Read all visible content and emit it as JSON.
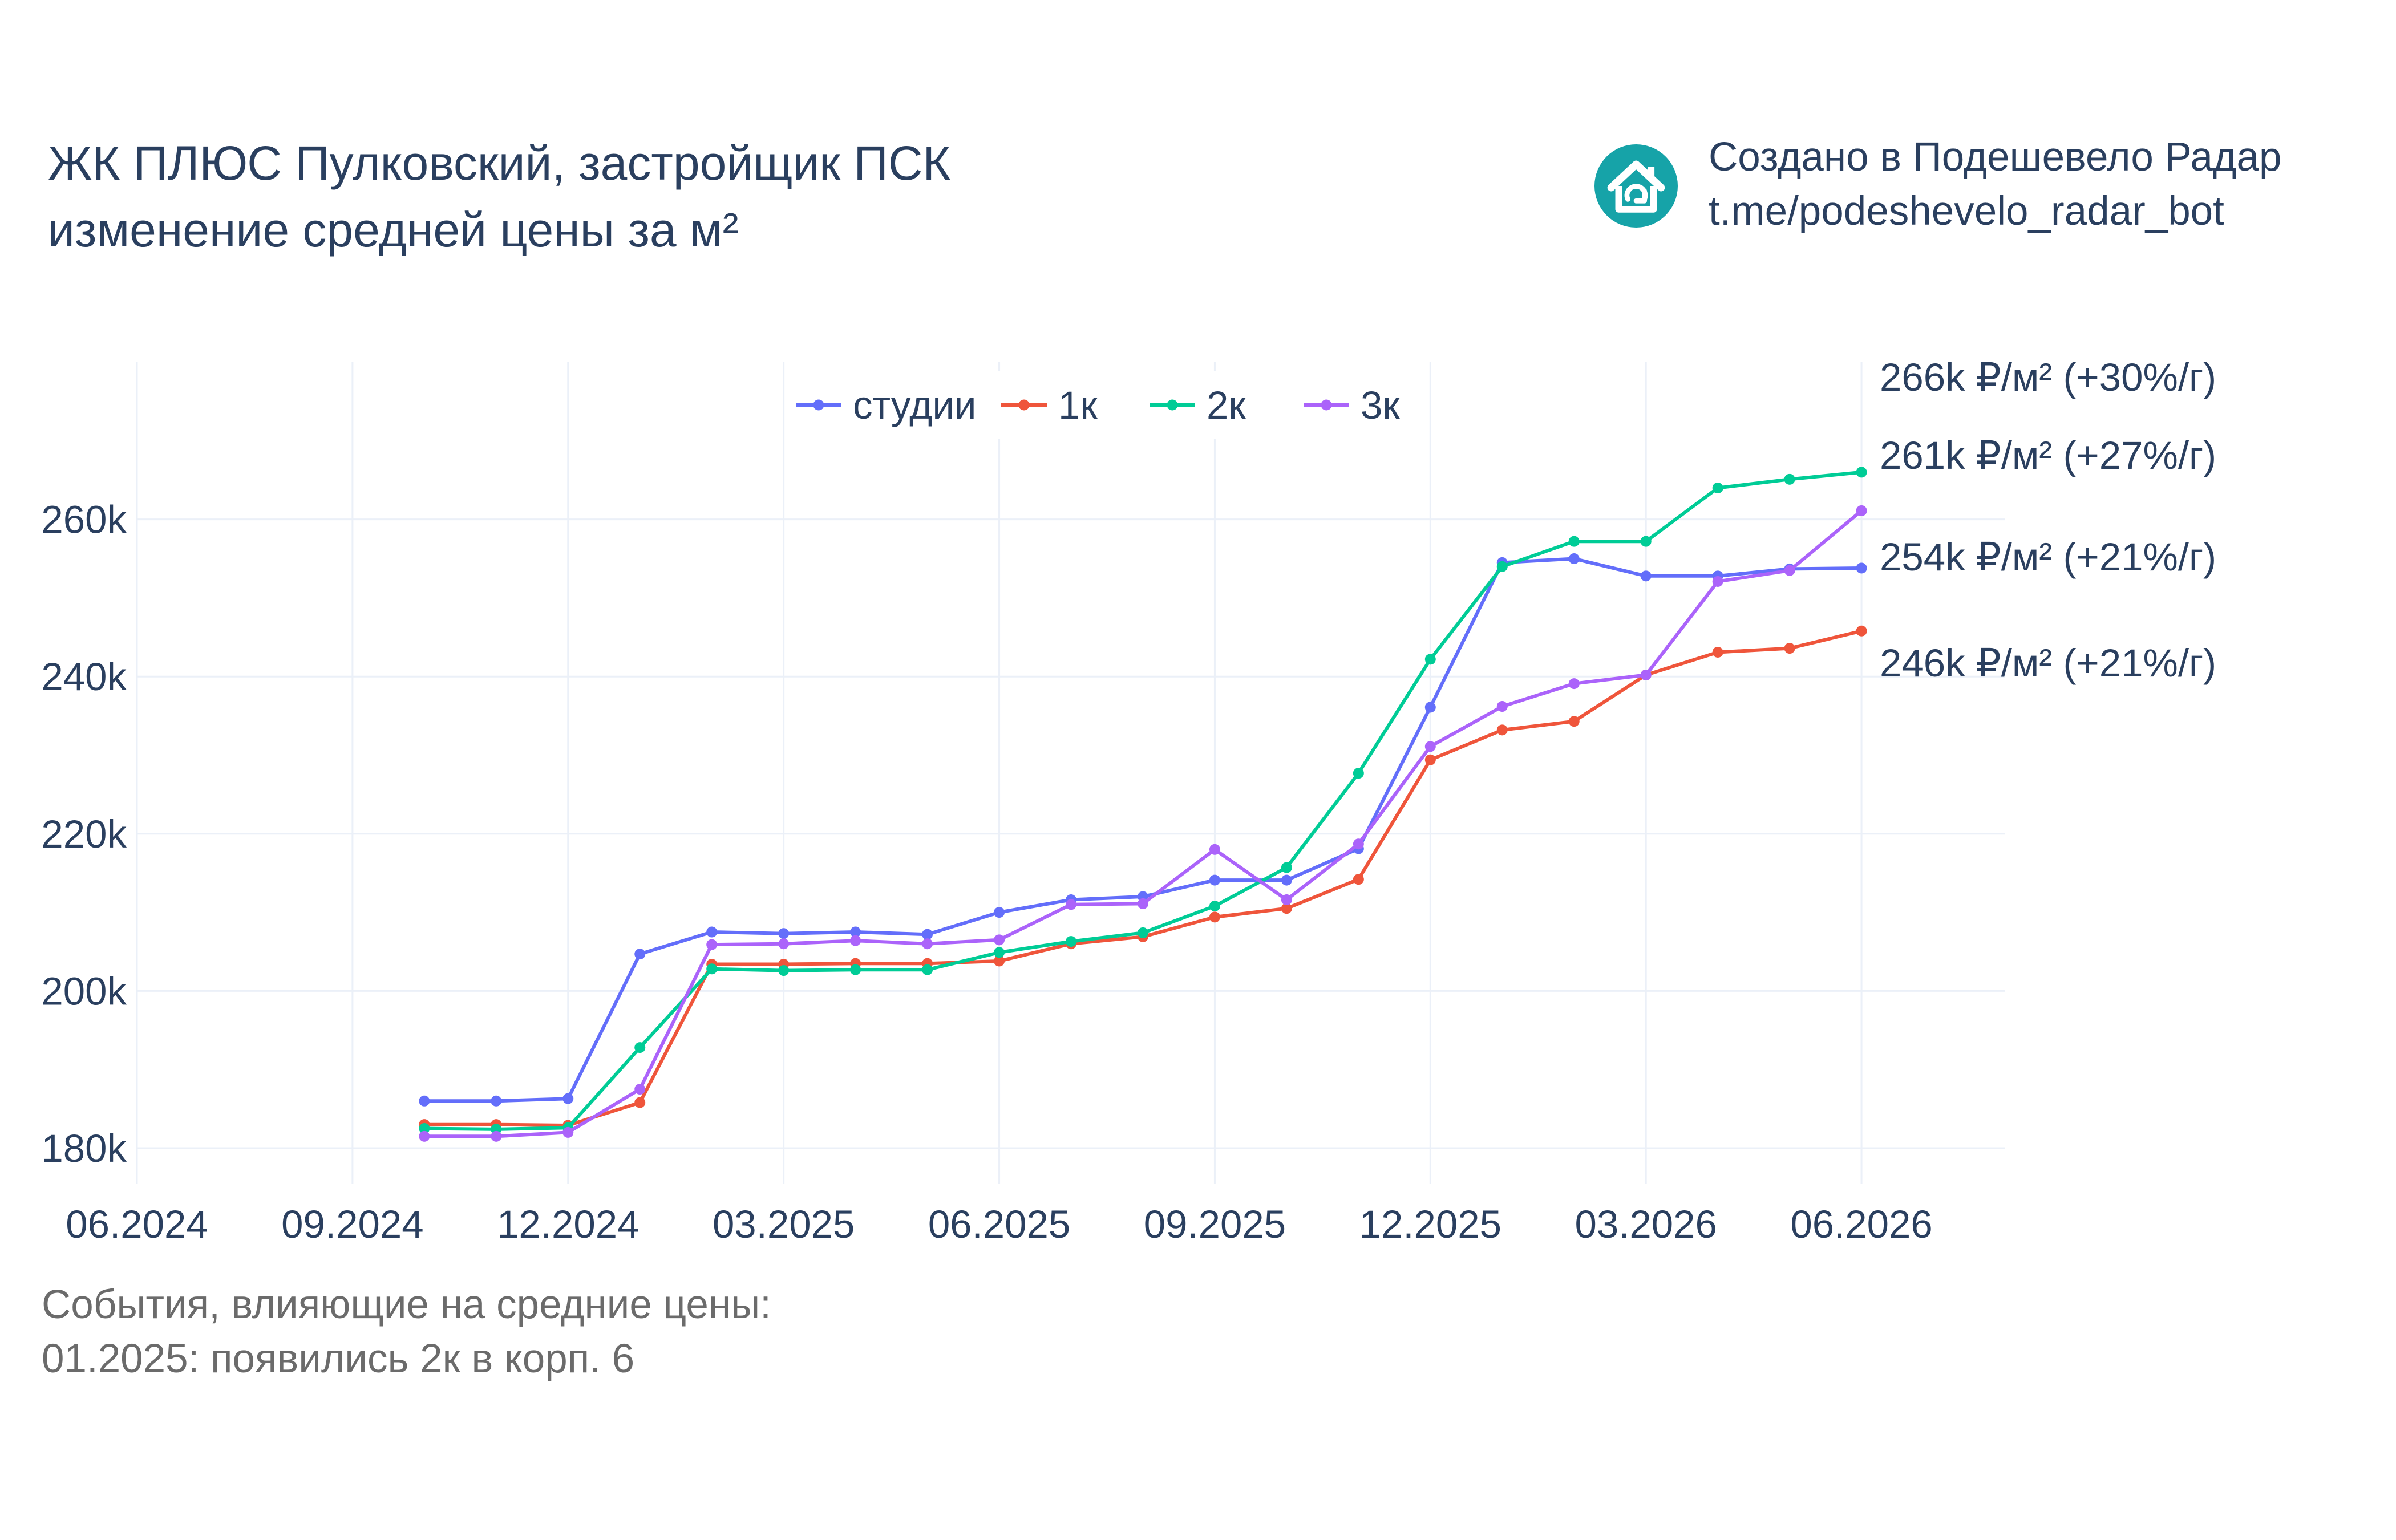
{
  "title": {
    "line1": "ЖК ПЛЮС Пулковский, застройщик ПСК",
    "line2": "изменение средней цены за м²"
  },
  "credit": {
    "line1": "Создано в Подешевело Радар",
    "line2": "t.me/podeshevelo_radar_bot",
    "logo_icon": "house-logo-icon",
    "logo_color": "#16a3a8"
  },
  "events": {
    "header": "События, влияющие на средние цены:",
    "items": [
      "01.2025: появились 2к в корп. 6"
    ]
  },
  "chart_data": {
    "type": "line",
    "x": [
      "2024-10",
      "2024-11",
      "2024-12",
      "2025-01",
      "2025-02",
      "2025-03",
      "2025-04",
      "2025-05",
      "2025-06",
      "2025-07",
      "2025-08",
      "2025-09",
      "2025-10",
      "2025-11",
      "2025-12",
      "2026-01",
      "2026-02",
      "2026-03",
      "2026-04",
      "2026-05",
      "2026-06"
    ],
    "x_ticks": [
      "2024-06",
      "2024-09",
      "2024-12",
      "2025-03",
      "2025-06",
      "2025-09",
      "2025-12",
      "2026-03",
      "2026-06"
    ],
    "x_tick_labels": [
      "06.2024",
      "09.2024",
      "12.2024",
      "03.2025",
      "06.2025",
      "09.2025",
      "12.2025",
      "03.2026",
      "06.2026"
    ],
    "xlim": [
      "2024-06",
      "2026-08"
    ],
    "y_ticks": [
      180000,
      200000,
      220000,
      240000,
      260000
    ],
    "y_tick_labels": [
      "180k",
      "200k",
      "220k",
      "240k",
      "260k"
    ],
    "ylim": [
      175500,
      280000
    ],
    "grid": true,
    "legend_position": "top-center",
    "series": [
      {
        "name": "студии",
        "color": "#636efa",
        "values": [
          186000,
          186000,
          186300,
          204700,
          207500,
          207300,
          207500,
          207200,
          210000,
          211600,
          212000,
          214100,
          214100,
          218100,
          236100,
          254500,
          255000,
          252800,
          252800,
          253700,
          253800
        ]
      },
      {
        "name": "1к",
        "color": "#ef553b",
        "values": [
          183000,
          183000,
          182900,
          185800,
          203400,
          203400,
          203500,
          203500,
          203800,
          206000,
          206900,
          209400,
          210500,
          214200,
          229400,
          233200,
          234300,
          240200,
          243100,
          243600,
          245800
        ]
      },
      {
        "name": "2к",
        "color": "#00cc96",
        "values": [
          182500,
          182400,
          182600,
          192800,
          202800,
          202600,
          202700,
          202700,
          204900,
          206300,
          207400,
          210800,
          215700,
          227700,
          242200,
          254000,
          257200,
          257200,
          264000,
          265100,
          266000
        ]
      },
      {
        "name": "3к",
        "color": "#ab63fa",
        "values": [
          181500,
          181500,
          182000,
          187500,
          205900,
          206000,
          206400,
          206000,
          206500,
          211000,
          211100,
          218000,
          211600,
          218700,
          231100,
          236200,
          239100,
          240200,
          252100,
          253500,
          261100
        ]
      }
    ],
    "end_labels": [
      {
        "text": "266k ₽/м² (+30%/г)",
        "value": 266000
      },
      {
        "text": "261k ₽/м² (+27%/г)",
        "value": 261100
      },
      {
        "text": "254k ₽/м² (+21%/г)",
        "value": 253800
      },
      {
        "text": "246k ₽/м² (+21%/г)",
        "value": 245800
      }
    ]
  }
}
